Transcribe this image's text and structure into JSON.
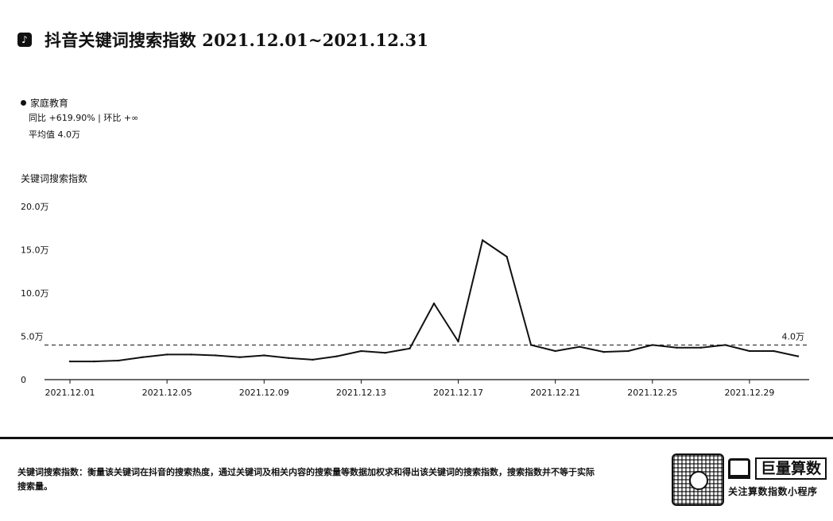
{
  "header": {
    "icon": "douyin-icon",
    "icon_glyph": "♪",
    "title": "抖音关键词搜索指数 2021.12.01~2021.12.31"
  },
  "legend": {
    "series_name": "家庭教育",
    "yoy_text": "同比 +619.90% | 环比 +∞",
    "avg_text": "平均值 4.0万"
  },
  "footer": {
    "description": "关键词搜索指数：衡量该关键词在抖音的搜索热度，通过关键词及相关内容的搜索量等数据加权求和得出该关键词的搜索指数，搜索指数并不等于实际搜索量。",
    "qr_icon": "qr-code-icon",
    "brand_name": "巨量算数",
    "brand_sub": "关注算数指数小程序"
  },
  "chart_data": {
    "type": "line",
    "title": "抖音关键词搜索指数 2021.12.01~2021.12.31",
    "ylabel": "关键词搜索指数",
    "ylim": [
      0,
      200000
    ],
    "y_ticks": [
      0,
      50000,
      100000,
      150000,
      200000
    ],
    "y_tick_labels": [
      "0",
      "5.0万",
      "10.0万",
      "15.0万",
      "20.0万"
    ],
    "x": [
      "2021.12.01",
      "2021.12.02",
      "2021.12.03",
      "2021.12.04",
      "2021.12.05",
      "2021.12.06",
      "2021.12.07",
      "2021.12.08",
      "2021.12.09",
      "2021.12.10",
      "2021.12.11",
      "2021.12.12",
      "2021.12.13",
      "2021.12.14",
      "2021.12.15",
      "2021.12.16",
      "2021.12.17",
      "2021.12.18",
      "2021.12.19",
      "2021.12.20",
      "2021.12.21",
      "2021.12.22",
      "2021.12.23",
      "2021.12.24",
      "2021.12.25",
      "2021.12.26",
      "2021.12.27",
      "2021.12.28",
      "2021.12.29",
      "2021.12.30",
      "2021.12.31"
    ],
    "x_tick_labels": [
      "2021.12.01",
      "2021.12.05",
      "2021.12.09",
      "2021.12.13",
      "2021.12.17",
      "2021.12.21",
      "2021.12.25",
      "2021.12.29"
    ],
    "series": [
      {
        "name": "家庭教育",
        "values": [
          21000,
          21000,
          22000,
          26000,
          29000,
          29000,
          28000,
          26000,
          28000,
          25000,
          23000,
          27000,
          33000,
          31000,
          36000,
          88000,
          44000,
          161000,
          142000,
          40000,
          33000,
          38000,
          32000,
          33000,
          40000,
          37000,
          37000,
          40000,
          33000,
          33000,
          27000
        ]
      }
    ],
    "reference_line": {
      "value": 40000,
      "label": "4.0万",
      "style": "dashed"
    },
    "grid": false,
    "color": "#111111"
  }
}
